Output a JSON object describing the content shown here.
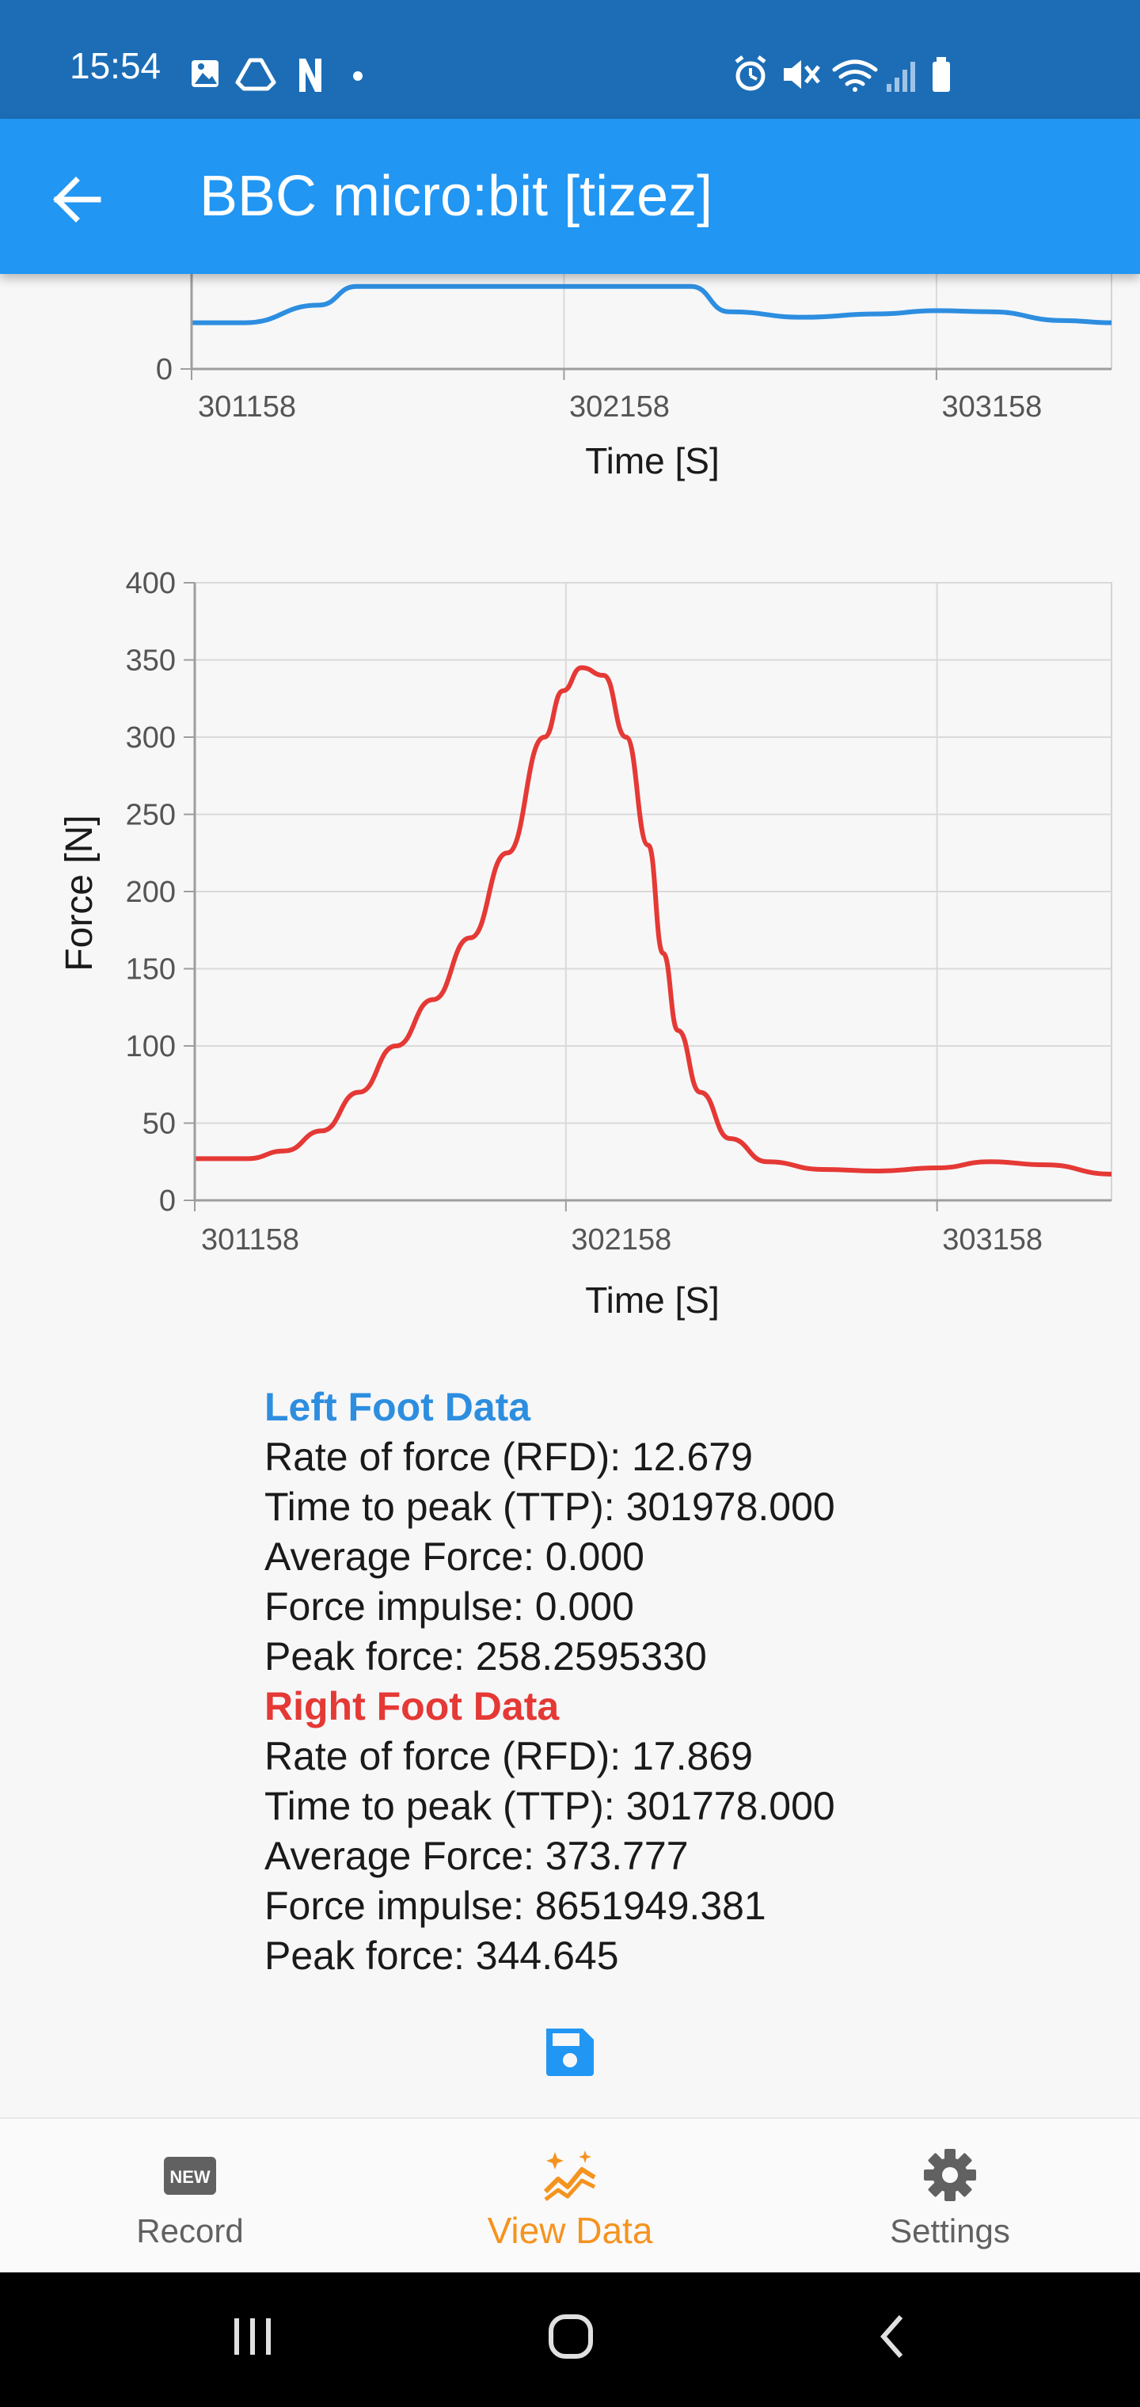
{
  "status_bar": {
    "time": "15:54",
    "left_icons": [
      "image-icon",
      "drive-icon",
      "netflix-icon",
      "dot-icon"
    ],
    "right_icons": [
      "alarm-icon",
      "mute-icon",
      "wifi-icon",
      "signal-icon",
      "battery-icon"
    ]
  },
  "app_bar": {
    "title": "BBC micro:bit [tizez]",
    "back_icon": "arrow-left-icon"
  },
  "left_chart": {
    "type": "line",
    "color": "#2d8ee0",
    "xlabel": "Time [S]",
    "x_ticks": [
      "301158",
      "302158",
      "303158"
    ],
    "xlim": [
      301158,
      303628
    ],
    "y_ticks_visible": [
      "0"
    ],
    "visible_points": [
      [
        301158,
        42
      ],
      [
        301300,
        42
      ],
      [
        301500,
        58
      ],
      [
        301600,
        75
      ],
      [
        302500,
        75
      ],
      [
        302600,
        52
      ],
      [
        302800,
        47
      ],
      [
        303000,
        50
      ],
      [
        303158,
        53
      ],
      [
        303300,
        52
      ],
      [
        303500,
        44
      ],
      [
        303628,
        42
      ]
    ]
  },
  "right_chart": {
    "type": "line",
    "color": "#e53935",
    "xlabel": "Time [S]",
    "ylabel": "Force [N]",
    "x_ticks": [
      "301158",
      "302158",
      "303158"
    ],
    "xlim": [
      301158,
      303628
    ],
    "y_ticks": [
      "400",
      "350",
      "300",
      "250",
      "200",
      "150",
      "100",
      "50",
      "0"
    ],
    "ylim": [
      0,
      400
    ],
    "points": [
      [
        301158,
        27
      ],
      [
        301300,
        27
      ],
      [
        301400,
        32
      ],
      [
        301500,
        45
      ],
      [
        301600,
        70
      ],
      [
        301700,
        100
      ],
      [
        301800,
        130
      ],
      [
        301900,
        170
      ],
      [
        302000,
        225
      ],
      [
        302100,
        300
      ],
      [
        302150,
        330
      ],
      [
        302200,
        345
      ],
      [
        302260,
        340
      ],
      [
        302320,
        300
      ],
      [
        302380,
        230
      ],
      [
        302420,
        160
      ],
      [
        302460,
        110
      ],
      [
        302520,
        70
      ],
      [
        302600,
        40
      ],
      [
        302700,
        25
      ],
      [
        302850,
        20
      ],
      [
        303000,
        19
      ],
      [
        303158,
        21
      ],
      [
        303300,
        25
      ],
      [
        303450,
        23
      ],
      [
        303628,
        17
      ]
    ]
  },
  "left_foot": {
    "heading": "Left Foot Data",
    "rfd": "Rate of force (RFD): 12.679",
    "ttp": "Time to peak (TTP): 301978.000",
    "avg": "Average Force: 0.000",
    "impulse": "Force impulse: 0.000",
    "peak": "Peak force: 258.2595330"
  },
  "right_foot": {
    "heading": "Right Foot Data",
    "rfd": "Rate of force (RFD): 17.869",
    "ttp": "Time to peak (TTP): 301778.000",
    "avg": "Average Force: 373.777",
    "impulse": "Force impulse: 8651949.381",
    "peak": "Peak force: 344.645"
  },
  "save_icon": "floppy-save-icon",
  "bottom_nav": {
    "items": [
      {
        "label": "Record",
        "icon": "new-badge-icon",
        "active": false
      },
      {
        "label": "View Data",
        "icon": "chart-sparkle-icon",
        "active": true
      },
      {
        "label": "Settings",
        "icon": "gear-icon",
        "active": false
      }
    ],
    "active_color": "#f5931f"
  },
  "system_nav": {
    "icons": [
      "recent-apps-icon",
      "home-icon",
      "back-icon"
    ]
  }
}
